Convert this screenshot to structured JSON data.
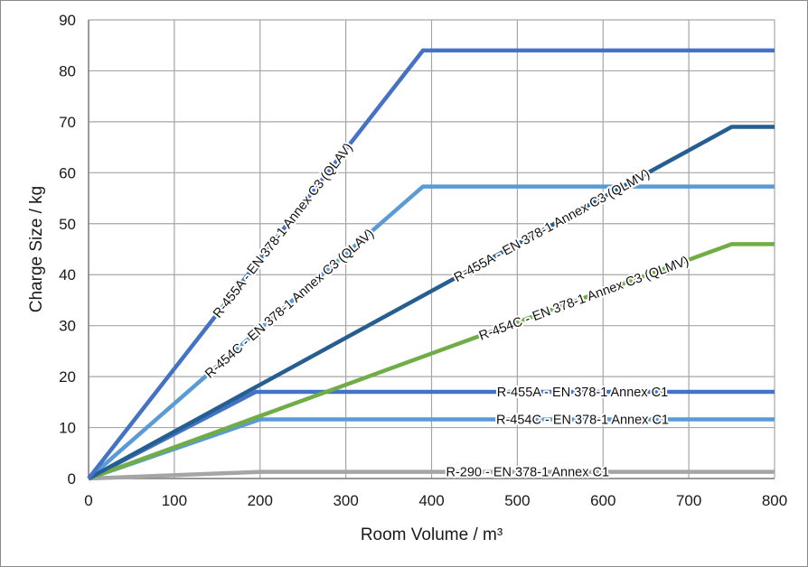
{
  "chart_data": {
    "type": "line",
    "title": "",
    "xlabel": "Room Volume / m³",
    "ylabel": "Charge Size / kg",
    "xlim": [
      0,
      800
    ],
    "ylim": [
      0,
      90
    ],
    "x_ticks": [
      0,
      100,
      200,
      300,
      400,
      500,
      600,
      700,
      800
    ],
    "y_ticks": [
      0,
      10,
      20,
      30,
      40,
      50,
      60,
      70,
      80,
      90
    ],
    "grid": true,
    "legend": "none",
    "series": [
      {
        "name": "R-455A - EN 378-1 Annex C3 (QLAV)",
        "color": "#4472C4",
        "points": [
          [
            0,
            0
          ],
          [
            390,
            84
          ],
          [
            800,
            84
          ]
        ],
        "label_at": [
          0.5,
          0.58
        ]
      },
      {
        "name": "R-454C - EN 378-1 Annex C3 (QLAV)",
        "color": "#5B9BD5",
        "points": [
          [
            0,
            0
          ],
          [
            390,
            57.3
          ],
          [
            800,
            57.3
          ]
        ],
        "label_at": [
          0.48,
          0.6
        ]
      },
      {
        "name": "R-455A - EN 378-1 Annex C3 (QLMV)",
        "color": "#255E91",
        "points": [
          [
            0,
            0
          ],
          [
            750,
            69
          ],
          [
            800,
            69
          ]
        ],
        "label_at": [
          0.5,
          0.72
        ]
      },
      {
        "name": "R-454C - EN 378-1 Annex C3 (QLMV)",
        "color": "#70AD47",
        "points": [
          [
            0,
            0
          ],
          [
            750,
            46
          ],
          [
            800,
            46
          ]
        ],
        "label_at": [
          0.5,
          0.77
        ]
      },
      {
        "name": "R-455A - EN 378-1 Annex C1",
        "color": "#4472C4",
        "points": [
          [
            0,
            0
          ],
          [
            195,
            17
          ],
          [
            800,
            17
          ]
        ],
        "label_at": [
          0.72,
          0.0
        ]
      },
      {
        "name": "R-454C - EN 378-1 Annex C1",
        "color": "#5B9BD5",
        "points": [
          [
            0,
            0
          ],
          [
            200,
            11.6
          ],
          [
            800,
            11.6
          ]
        ],
        "label_at": [
          0.72,
          0.0
        ]
      },
      {
        "name": "R-290 - EN 378-1 Annex C1",
        "color": "#A5A5A5",
        "points": [
          [
            0,
            0
          ],
          [
            200,
            1.3
          ],
          [
            800,
            1.3
          ]
        ],
        "label_at": [
          0.64,
          0.0
        ]
      }
    ]
  }
}
